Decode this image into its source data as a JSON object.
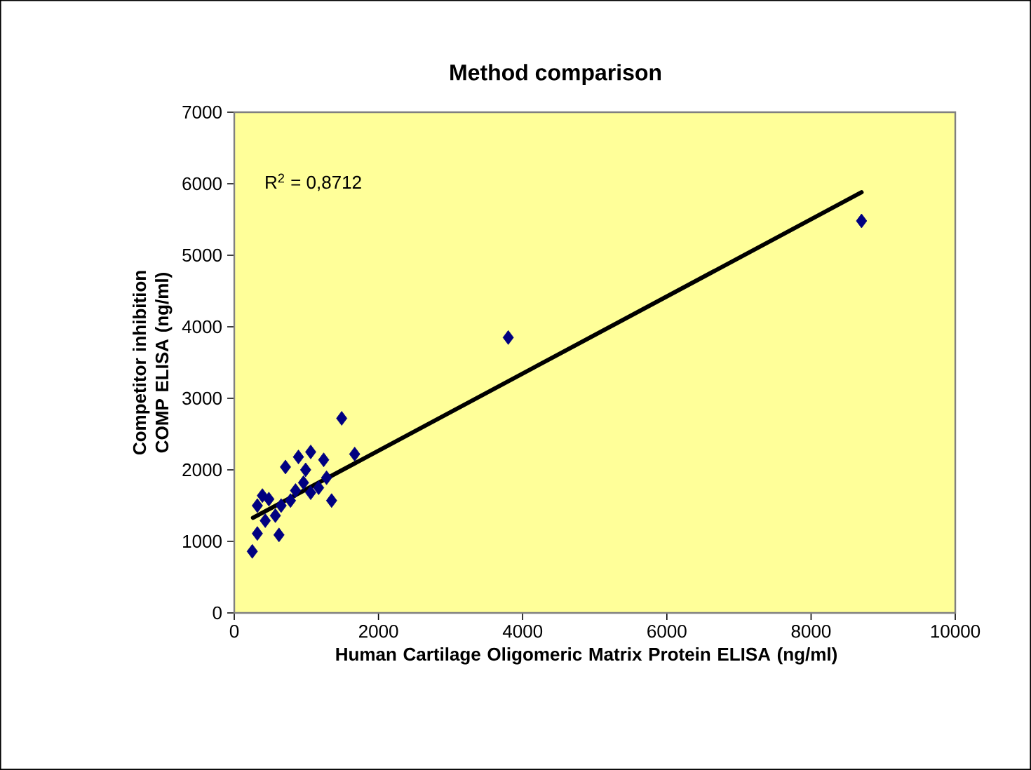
{
  "chart_data": {
    "type": "scatter",
    "title": "Method comparison",
    "xlabel": "Human Cartilage Oligomeric Matrix Protein ELISA (ng/ml)",
    "ylabel": "Competitor inhibition COMP ELISA (ng/ml)",
    "annotations": [
      "R$^{2}$ = 0,8712"
    ],
    "xlim": [
      0,
      10000
    ],
    "xticks": [
      0,
      2000,
      4000,
      6000,
      8000,
      10000
    ],
    "ylim": [
      0,
      7000
    ],
    "yticks": [
      0,
      1000,
      2000,
      3000,
      4000,
      5000,
      6000,
      7000
    ],
    "series": [
      {
        "marker": "diamond",
        "color": "#000080",
        "x": [
          8700,
          3800,
          1490,
          1670,
          250,
          320,
          620,
          390,
          480,
          710,
          890,
          1060,
          1240,
          1350,
          1280,
          960,
          780,
          570,
          430,
          990,
          1170,
          850,
          650,
          1060,
          320
        ],
        "values": [
          5480,
          3850,
          2720,
          2220,
          860,
          1110,
          1090,
          1640,
          1590,
          2040,
          2180,
          2250,
          2140,
          1570,
          1890,
          1820,
          1570,
          1360,
          1290,
          2000,
          1750,
          1710,
          1500,
          1680,
          1500
        ]
      },
      {
        "type": "line",
        "marker": "none",
        "color": "#000000",
        "x": [
          260,
          8700
        ],
        "values": [
          1330,
          5880
        ]
      }
    ]
  }
}
